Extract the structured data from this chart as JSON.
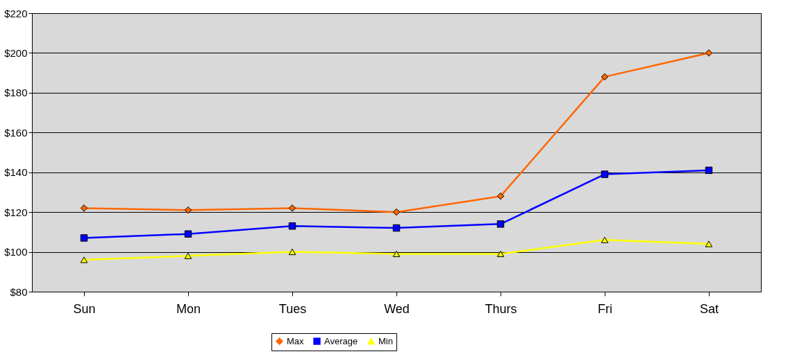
{
  "chart_data": {
    "type": "line",
    "categories": [
      "Sun",
      "Mon",
      "Tues",
      "Wed",
      "Thurs",
      "Fri",
      "Sat"
    ],
    "series": [
      {
        "name": "Max",
        "color": "#ff6600",
        "marker": "diamond",
        "values": [
          122,
          121,
          122,
          120,
          128,
          188,
          200
        ]
      },
      {
        "name": "Average",
        "color": "#0000ff",
        "marker": "square",
        "values": [
          107,
          109,
          113,
          112,
          114,
          139,
          141
        ]
      },
      {
        "name": "Min",
        "color": "#ffff00",
        "marker": "triangle",
        "values": [
          96,
          98,
          100,
          99,
          99,
          106,
          104
        ]
      }
    ],
    "ylim": [
      80,
      220
    ],
    "yticks": [
      {
        "value": 80,
        "label": "$80"
      },
      {
        "value": 100,
        "label": "$100"
      },
      {
        "value": 120,
        "label": "$120"
      },
      {
        "value": 140,
        "label": "$140"
      },
      {
        "value": 160,
        "label": "$160"
      },
      {
        "value": 180,
        "label": "$180"
      },
      {
        "value": 200,
        "label": "$200"
      },
      {
        "value": 220,
        "label": "$220"
      }
    ],
    "grid": "y",
    "legend": "bottom"
  }
}
